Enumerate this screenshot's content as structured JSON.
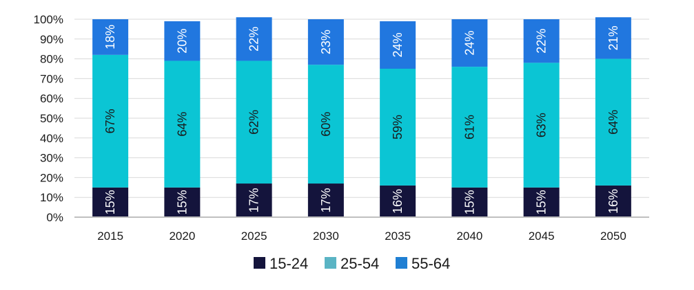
{
  "chart_data": {
    "type": "bar",
    "stacked": true,
    "categories": [
      "2015",
      "2020",
      "2025",
      "2030",
      "2035",
      "2040",
      "2045",
      "2050"
    ],
    "series": [
      {
        "name": "15-24",
        "color": "#14143c",
        "label_color": "#ffffff",
        "values": [
          15,
          15,
          17,
          17,
          16,
          15,
          15,
          16
        ],
        "labels": [
          "15%",
          "15%",
          "17%",
          "17%",
          "16%",
          "15%",
          "15%",
          "16%"
        ]
      },
      {
        "name": "25-54",
        "color": "#0bc5d4",
        "label_color": "#1a1a1a",
        "values": [
          67,
          64,
          62,
          60,
          59,
          61,
          63,
          64
        ],
        "labels": [
          "67%",
          "64%",
          "62%",
          "60%",
          "59%",
          "61%",
          "63%",
          "64%"
        ]
      },
      {
        "name": "55-64",
        "color": "#2177df",
        "label_color": "#ffffff",
        "values": [
          18,
          20,
          22,
          23,
          24,
          24,
          22,
          21
        ],
        "labels": [
          "18%",
          "20%",
          "22%",
          "23%",
          "24%",
          "24%",
          "22%",
          "21%"
        ]
      }
    ],
    "legend_colors": [
      "#14143c",
      "#5ab4c4",
      "#1f7fd3"
    ],
    "ylim": [
      0,
      100
    ],
    "y_ticks": [
      0,
      10,
      20,
      30,
      40,
      50,
      60,
      70,
      80,
      90,
      100
    ],
    "y_tick_labels": [
      "0%",
      "10%",
      "20%",
      "30%",
      "40%",
      "50%",
      "60%",
      "70%",
      "80%",
      "90%",
      "100%"
    ],
    "grid": true,
    "legend_position": "bottom"
  }
}
